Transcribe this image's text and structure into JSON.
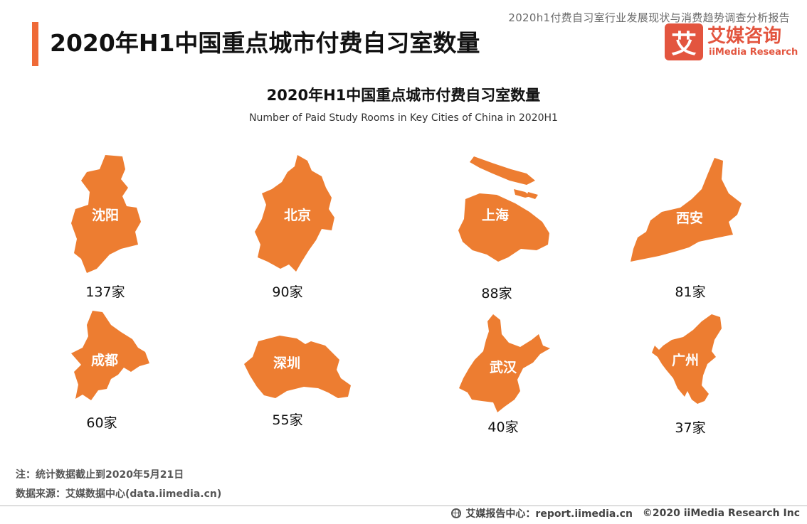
{
  "header": {
    "report_subtitle": "2020h1付费自习室行业发展现状与消费趋势调查分析报告",
    "page_title": "2020年H1中国重点城市付费自习室数量",
    "logo": {
      "badge": "艾",
      "cn": "艾媒咨询",
      "en": "iiMedia Research"
    }
  },
  "chart_data": {
    "type": "pictorial-map",
    "title": "2020年H1中国重点城市付费自习室数量",
    "subtitle": "Number of Paid Study Rooms in Key Cities of China in 2020H1",
    "unit": "家",
    "categories": [
      "沈阳",
      "北京",
      "上海",
      "西安",
      "成都",
      "深圳",
      "武汉",
      "广州"
    ],
    "values": [
      137,
      90,
      88,
      81,
      60,
      55,
      40,
      37
    ],
    "value_labels": [
      "137家",
      "90家",
      "88家",
      "81家",
      "60家",
      "55家",
      "40家",
      "37家"
    ],
    "fill_color": "#ed7d31",
    "layout": "4 columns x 2 rows"
  },
  "footer": {
    "note": "注：统计数据截止到2020年5月21日",
    "source": "数据来源：艾媒数据中心(data.iimedia.cn)",
    "report_center": "艾媒报告中心：report.iimedia.cn",
    "copyright": "©2020  iiMedia Research  Inc"
  },
  "colors": {
    "accent": "#ef6a37",
    "logo_red": "#e3553f",
    "map_fill": "#ed7d31"
  }
}
